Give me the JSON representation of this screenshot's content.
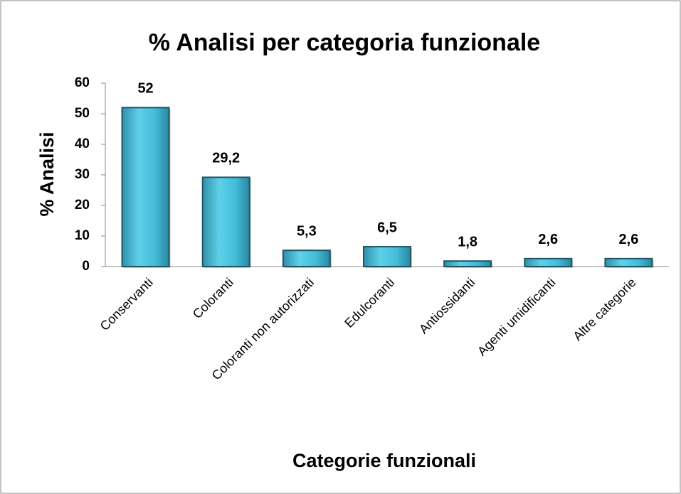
{
  "chart_data": {
    "type": "bar",
    "title": "% Analisi per categoria funzionale",
    "x_label": "Categorie funzionali",
    "y_label": "% Analisi",
    "categories": [
      "Conservanti",
      "Coloranti",
      "Coloranti non autorizzati",
      "Edulcoranti",
      "Antiossidanti",
      "Agenti umidificanti",
      "Altre categorie"
    ],
    "values": [
      52,
      29.2,
      5.3,
      6.5,
      1.8,
      2.6,
      2.6
    ],
    "value_labels": [
      "52",
      "29,2",
      "5,3",
      "6,5",
      "1,8",
      "2,6",
      "2,6"
    ],
    "color": "#4bacc6",
    "ylim": [
      0,
      60
    ],
    "yticks": [
      0,
      10,
      20,
      30,
      40,
      50,
      60
    ],
    "grid": false
  }
}
